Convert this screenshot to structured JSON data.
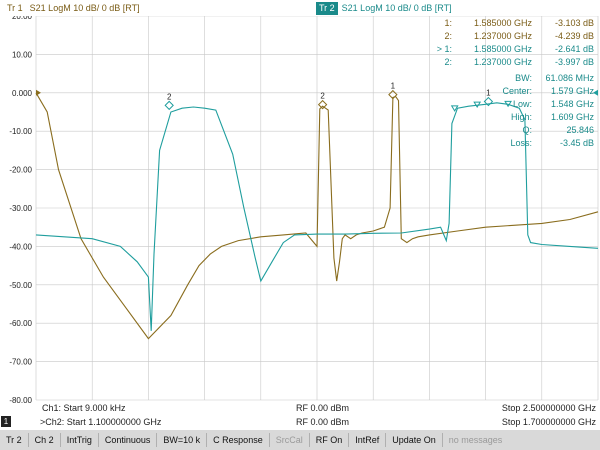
{
  "traces": {
    "tr1": {
      "name": "Tr 1",
      "desc": "S21  LogM  10 dB/  0 dB  [RT]"
    },
    "tr2": {
      "name": "Tr 2",
      "desc": "S21  LogM  10 dB/  0 dB  [RT]"
    }
  },
  "colors": {
    "trace1": "#8a6d1e",
    "trace2": "#1f9e9e",
    "grid": "#c8c8c8"
  },
  "chart_data": {
    "type": "line",
    "ylim": [
      -80,
      20
    ],
    "y_ticks": [
      "20.00",
      "10.00",
      "0.000",
      "-10.00",
      "-20.00",
      "-30.00",
      "-40.00",
      "-50.00",
      "-60.00",
      "-70.00",
      "-80.00"
    ],
    "series": [
      {
        "id": "trace1",
        "x": [
          0,
          0.02,
          0.04,
          0.08,
          0.12,
          0.16,
          0.2,
          0.24,
          0.27,
          0.29,
          0.31,
          0.33,
          0.36,
          0.4,
          0.44,
          0.48,
          0.5,
          0.505,
          0.51,
          0.52,
          0.53,
          0.535,
          0.54,
          0.545,
          0.55,
          0.56,
          0.57,
          0.58,
          0.6,
          0.62,
          0.63,
          0.635,
          0.64,
          0.645,
          0.65,
          0.66,
          0.67,
          0.68,
          0.7,
          0.75,
          0.8,
          0.85,
          0.9,
          0.95,
          1.0
        ],
        "values": [
          0,
          -5,
          -20,
          -38,
          -48,
          -56,
          -64,
          -58,
          -50,
          -45,
          -42,
          -40,
          -38.5,
          -37.5,
          -37,
          -36.5,
          -40,
          -4.2,
          -3.5,
          -4.5,
          -43,
          -49,
          -44,
          -38,
          -37,
          -38,
          -37,
          -36.5,
          -36,
          -35,
          -30,
          -1.2,
          -1,
          -2,
          -38,
          -39,
          -38,
          -37.5,
          -37,
          -36,
          -35,
          -34.5,
          -34,
          -33,
          -31
        ]
      },
      {
        "id": "trace2",
        "x": [
          0,
          0.1,
          0.15,
          0.18,
          0.2,
          0.205,
          0.21,
          0.22,
          0.24,
          0.26,
          0.28,
          0.3,
          0.32,
          0.35,
          0.37,
          0.39,
          0.4,
          0.42,
          0.44,
          0.46,
          0.5,
          0.55,
          0.6,
          0.65,
          0.7,
          0.72,
          0.73,
          0.735,
          0.74,
          0.75,
          0.77,
          0.8,
          0.82,
          0.84,
          0.86,
          0.87,
          0.875,
          0.88,
          0.9,
          0.95,
          1.0
        ],
        "values": [
          -37,
          -38,
          -40,
          -44,
          -48,
          -62,
          -42,
          -15,
          -5,
          -4,
          -3.7,
          -4,
          -4.5,
          -16,
          -30,
          -43,
          -49,
          -44,
          -39,
          -37,
          -36.8,
          -36.8,
          -36.6,
          -36.5,
          -35.5,
          -35,
          -38.5,
          -34,
          -8,
          -4,
          -3.5,
          -3,
          -2.6,
          -3,
          -4,
          -7,
          -37,
          -39,
          -39.5,
          -40,
          -40.5
        ]
      }
    ]
  },
  "markers": [
    {
      "id": "1:",
      "freq": "1.585000 GHz",
      "value": "-3.103 dB",
      "trace": "trace1"
    },
    {
      "id": "2:",
      "freq": "1.237000 GHz",
      "value": "-4.239 dB",
      "trace": "trace1"
    },
    {
      "id": "> 1:",
      "freq": "1.585000 GHz",
      "value": "-2.641 dB",
      "trace": "trace2"
    },
    {
      "id": "2:",
      "freq": "1.237000 GHz",
      "value": "-3.997 dB",
      "trace": "trace2"
    }
  ],
  "marker_labels": {
    "m1": "1",
    "m2": "2"
  },
  "bandwidth": [
    {
      "label": "BW:",
      "value": "61.086 MHz"
    },
    {
      "label": "Center:",
      "value": "1.579 GHz"
    },
    {
      "label": "Low:",
      "value": "1.548 GHz"
    },
    {
      "label": "High:",
      "value": "1.609 GHz"
    },
    {
      "label": "Q:",
      "value": "25.846"
    },
    {
      "label": "Loss:",
      "value": "-3.45 dB"
    }
  ],
  "channel_info": {
    "ch1_start": "Ch1: Start 9.000 kHz",
    "ch2_start": ">Ch2: Start 1.100000000 GHz",
    "rf1": "RF 0.00 dBm",
    "rf2": "RF 0.00 dBm",
    "ch1_stop": "Stop 2.500000000 GHz",
    "ch2_stop": "Stop 1.700000000 GHz",
    "badge": "1"
  },
  "status_bar": {
    "items": [
      "Tr 2",
      "Ch 2",
      "IntTrig",
      "Continuous",
      "BW=10 k",
      "C Response",
      "SrcCal",
      "RF On",
      "IntRef",
      "Update On",
      "no messages"
    ]
  }
}
